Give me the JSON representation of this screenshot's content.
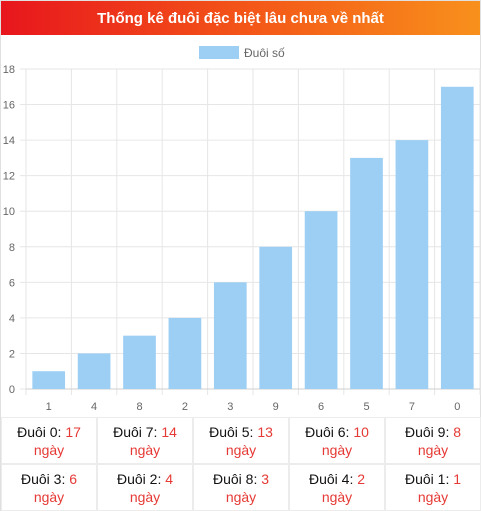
{
  "header": {
    "title": "Thống kê đuôi đặc biệt lâu chưa về nhất"
  },
  "chart_data": {
    "type": "bar",
    "categories": [
      "1",
      "4",
      "8",
      "2",
      "3",
      "9",
      "6",
      "5",
      "7",
      "0"
    ],
    "series": [
      {
        "name": "Đuôi số",
        "values": [
          1,
          2,
          3,
          4,
          6,
          8,
          10,
          13,
          14,
          17
        ],
        "color": "#9ccff3"
      }
    ],
    "ylim": [
      0,
      18
    ],
    "yticks": [
      0,
      2,
      4,
      6,
      8,
      10,
      12,
      14,
      16,
      18
    ],
    "grid": true,
    "legend_position": "top"
  },
  "stats": {
    "unit": "ngày",
    "items": [
      {
        "label": "Đuôi 0:",
        "value": "17"
      },
      {
        "label": "Đuôi 7:",
        "value": "14"
      },
      {
        "label": "Đuôi 5:",
        "value": "13"
      },
      {
        "label": "Đuôi 6:",
        "value": "10"
      },
      {
        "label": "Đuôi 9:",
        "value": "8"
      },
      {
        "label": "Đuôi 3:",
        "value": "6"
      },
      {
        "label": "Đuôi 2:",
        "value": "4"
      },
      {
        "label": "Đuôi 8:",
        "value": "3"
      },
      {
        "label": "Đuôi 4:",
        "value": "2"
      },
      {
        "label": "Đuôi 1:",
        "value": "1"
      }
    ]
  }
}
